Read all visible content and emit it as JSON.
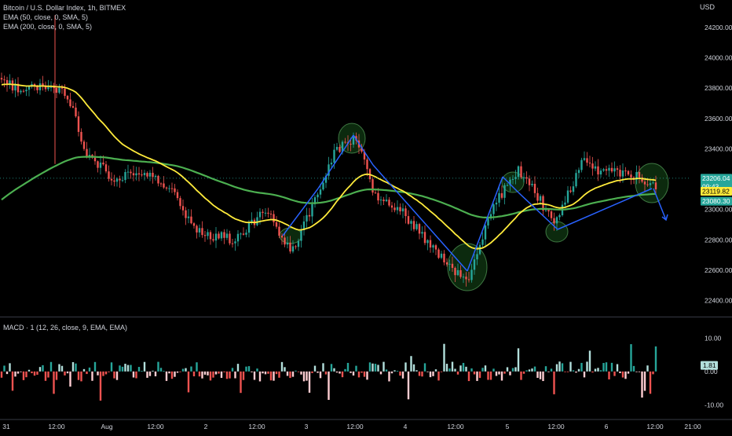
{
  "chart_data": {
    "type": "candlestick",
    "instrument": "Bitcoin / U.S. Dollar Index",
    "timeframe": "1h",
    "exchange": "BITMEX",
    "currency": "USD",
    "indicators": [
      "EMA (50, close, 0, SMA, 5)",
      "EMA (200, close, 0, SMA, 5)"
    ],
    "x_ticks": [
      "31",
      "12:00",
      "Aug",
      "12:00",
      "2",
      "12:00",
      "3",
      "12:00",
      "4",
      "12:00",
      "5",
      "12:00",
      "6",
      "12:00",
      "21:00"
    ],
    "price_axis": {
      "ticks": [
        "24200.00",
        "24000.00",
        "23800.00",
        "23600.00",
        "23400.00",
        "23200.00",
        "23000.00",
        "22800.00",
        "22600.00",
        "22400.00"
      ],
      "range": [
        22300,
        24380
      ]
    },
    "price_tags": [
      {
        "value": "23206.04",
        "sub": "09:43",
        "color": "#26a69a",
        "text": "#ffffff",
        "y": 23206.04
      },
      {
        "value": "23119.82",
        "color": "#ffeb3b",
        "text": "#000000",
        "y": 23119.82
      },
      {
        "value": "23080.30",
        "color": "#26a69a",
        "text": "#ffffff",
        "y": 23055
      }
    ],
    "colors": {
      "up": "#26a69a",
      "down": "#ef5350",
      "ema50": "#ffeb3b",
      "ema200": "#4caf50",
      "annot": "#2962ff",
      "circle": "#1b5e20"
    },
    "macd": {
      "label": "MACD · 1 (12, 26, close, 9, EMA, EMA)",
      "ticks": [
        "10.00",
        "0.00",
        "-10.00"
      ],
      "range": [
        -13,
        16
      ],
      "last_value": "1.81"
    }
  }
}
